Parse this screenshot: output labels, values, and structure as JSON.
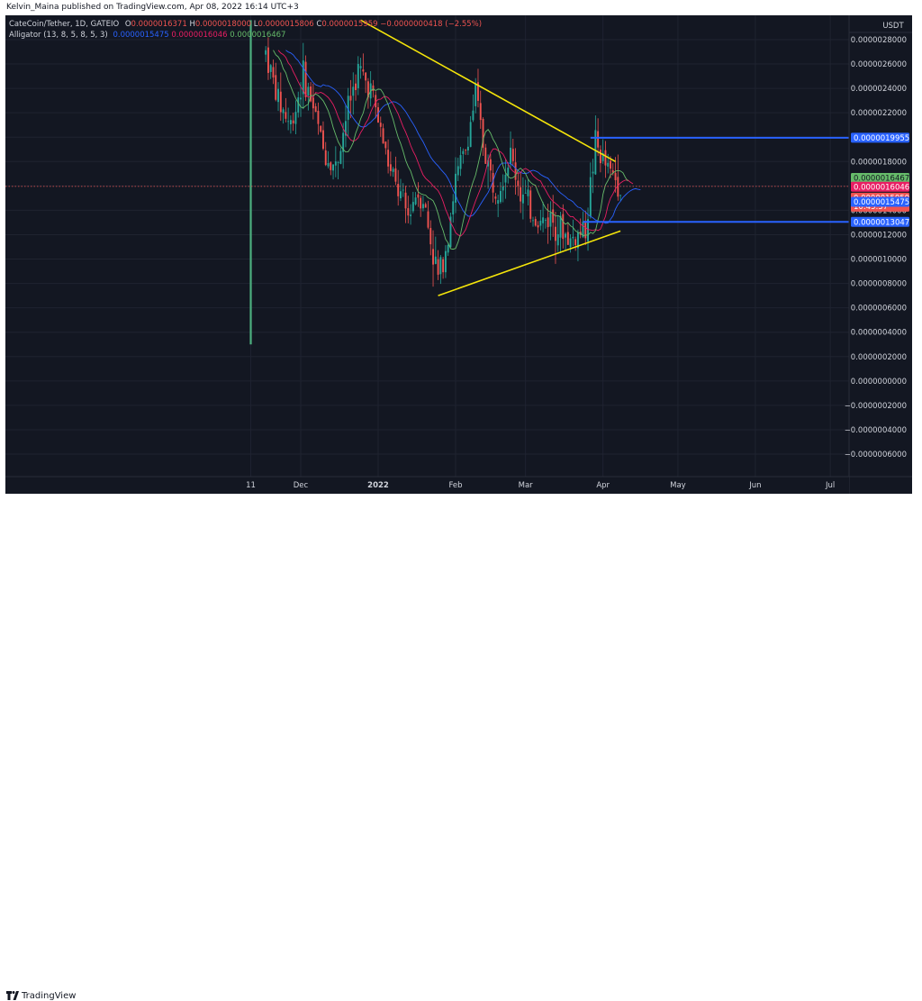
{
  "publisher_line": "Kelvin_Maina published on TradingView.com, Apr 08, 2022 16:14 UTC+3",
  "brand": "TradingView",
  "legend": {
    "symbol": "CateCoin/Tether, 1D, GATEIO",
    "o_label": "O",
    "o_value": "0.0000016371",
    "h_label": "H",
    "h_value": "0.0000018000",
    "l_label": "L",
    "l_value": "0.0000015806",
    "c_label": "C",
    "c_value": "0.0000015959",
    "change": "−0.0000000418 (−2.55%)",
    "indicator": "Alligator (13, 8, 5, 8, 5, 3)",
    "jaw": "0.0000015475",
    "teeth": "0.0000016046",
    "lips": "0.0000016467"
  },
  "colors": {
    "background": "#131722",
    "bullish": "#26a69a",
    "bearish": "#ef5350",
    "jaw": "#2962ff",
    "teeth": "#e91e63",
    "lips": "#66bb6a",
    "trendline": "#f5e50a",
    "hline": "#2962ff",
    "vline": "#4caf7f"
  },
  "chart_data": {
    "type": "candlestick",
    "currency": "USDT",
    "y_ticks": [
      "0.0000028000",
      "0.0000026000",
      "0.0000024000",
      "0.0000022000",
      "0.0000020000",
      "0.0000018000",
      "0.0000016000",
      "0.0000014000",
      "0.0000012000",
      "0.0000010000",
      "0.0000008000",
      "0.0000006000",
      "0.0000004000",
      "0.0000002000",
      "0.0000000000",
      "−0.0000002000",
      "−0.0000004000",
      "−0.0000006000"
    ],
    "y_tick_values": [
      2.8,
      2.6,
      2.4,
      2.2,
      2.0,
      1.8,
      1.6,
      1.4,
      1.2,
      1.0,
      0.8,
      0.6,
      0.4,
      0.2,
      0.0,
      -0.2,
      -0.4,
      -0.6
    ],
    "y_scale_unit": "1e-6 USDT",
    "x_ticks": [
      {
        "label": "11",
        "date": "2021-11-11"
      },
      {
        "label": "Dec",
        "date": "2021-12-01"
      },
      {
        "label": "2022",
        "date": "2022-01-01"
      },
      {
        "label": "Feb",
        "date": "2022-02-01"
      },
      {
        "label": "Mar",
        "date": "2022-03-01"
      },
      {
        "label": "Apr",
        "date": "2022-04-01"
      },
      {
        "label": "May",
        "date": "2022-05-01"
      },
      {
        "label": "Jun",
        "date": "2022-06-01"
      },
      {
        "label": "Jul",
        "date": "2022-07-01"
      }
    ],
    "first_bar_date": "2021-11-17",
    "last_bar_date": "2022-04-08",
    "close_path": [
      [
        "2021-11-17",
        2.7
      ],
      [
        "2021-11-22",
        2.3
      ],
      [
        "2021-11-27",
        2.1
      ],
      [
        "2021-12-02",
        2.5
      ],
      [
        "2021-12-06",
        2.25
      ],
      [
        "2021-12-10",
        1.9
      ],
      [
        "2021-12-15",
        1.75
      ],
      [
        "2021-12-20",
        2.25
      ],
      [
        "2021-12-24",
        2.55
      ],
      [
        "2021-12-29",
        2.4
      ],
      [
        "2022-01-02",
        2.05
      ],
      [
        "2022-01-06",
        1.7
      ],
      [
        "2022-01-10",
        1.5
      ],
      [
        "2022-01-13",
        1.35
      ],
      [
        "2022-01-16",
        1.55
      ],
      [
        "2022-01-19",
        1.5
      ],
      [
        "2022-01-22",
        1.15
      ],
      [
        "2022-01-25",
        0.85
      ],
      [
        "2022-01-28",
        1.1
      ],
      [
        "2022-02-01",
        1.65
      ],
      [
        "2022-02-05",
        1.9
      ],
      [
        "2022-02-09",
        2.35
      ],
      [
        "2022-02-12",
        1.95
      ],
      [
        "2022-02-16",
        1.6
      ],
      [
        "2022-02-19",
        1.65
      ],
      [
        "2022-02-23",
        1.85
      ],
      [
        "2022-02-27",
        1.55
      ],
      [
        "2022-03-03",
        1.4
      ],
      [
        "2022-03-07",
        1.3
      ],
      [
        "2022-03-11",
        1.35
      ],
      [
        "2022-03-15",
        1.25
      ],
      [
        "2022-03-19",
        1.15
      ],
      [
        "2022-03-22",
        1.2
      ],
      [
        "2022-03-25",
        1.25
      ],
      [
        "2022-03-27",
        1.6
      ],
      [
        "2022-03-29",
        1.95
      ],
      [
        "2022-04-01",
        1.8
      ],
      [
        "2022-04-04",
        1.7
      ],
      [
        "2022-04-07",
        1.65
      ],
      [
        "2022-04-08",
        1.6
      ]
    ],
    "last_price": 1.5959,
    "horizontal_lines": [
      {
        "value": 1.9955,
        "label": "0.0000019955",
        "from_date": "2022-03-27"
      },
      {
        "value": 1.3047,
        "label": "0.0000013047",
        "from_date": "2022-03-24"
      }
    ],
    "trendlines": [
      {
        "from": [
          "2021-12-25",
          2.96
        ],
        "to": [
          "2022-04-06",
          1.8
        ]
      },
      {
        "from": [
          "2022-01-25",
          0.7
        ],
        "to": [
          "2022-04-08",
          1.23
        ]
      }
    ],
    "vertical_line_date": "2021-11-11",
    "vertical_line_range": [
      0.3,
      2.96
    ],
    "price_labels": [
      {
        "label": "0.0000016467",
        "series": "lips",
        "value": 1.6467
      },
      {
        "label": "0.0000016046",
        "series": "teeth",
        "value": 1.6046
      },
      {
        "label": "0.0000015959",
        "series": "close",
        "value": 1.5959,
        "countdown": "10:45:57"
      },
      {
        "label": "0.0000015475",
        "series": "jaw",
        "value": 1.5475
      }
    ]
  }
}
